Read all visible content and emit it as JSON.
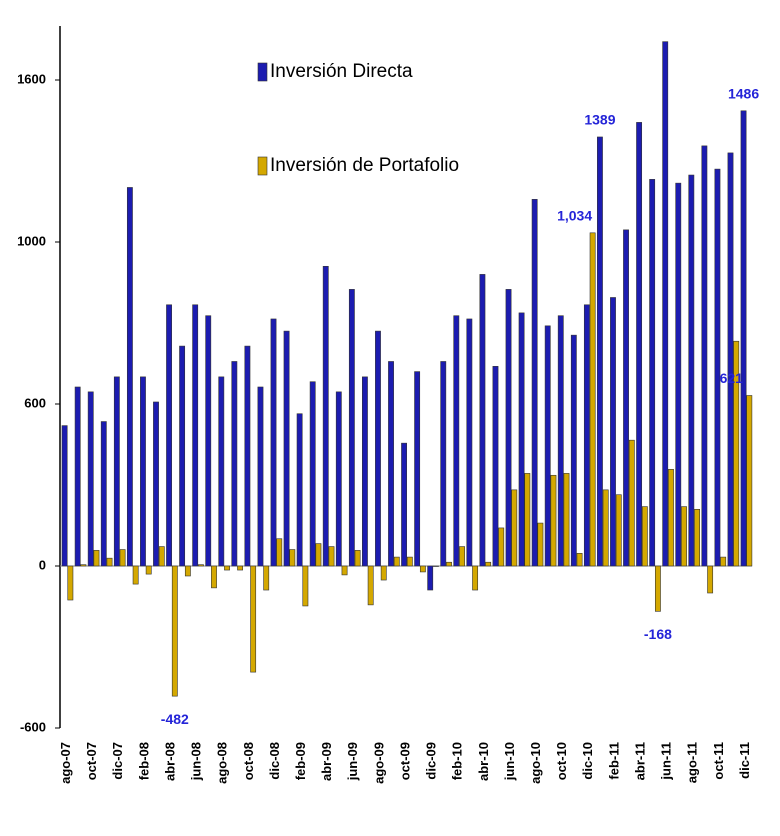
{
  "chart_data": {
    "type": "bar",
    "categories": [
      "ago-07",
      null,
      "oct-07",
      null,
      "dic-07",
      null,
      "feb-08",
      null,
      "abr-08",
      null,
      "jun-08",
      null,
      "ago-08",
      null,
      "oct-08",
      null,
      "dic-08",
      null,
      "feb-09",
      null,
      "abr-09",
      null,
      "jun-09",
      null,
      "ago-09",
      null,
      "oct-09",
      null,
      "dic-09",
      null,
      "feb-10",
      null,
      "abr-10",
      null,
      "jun-10",
      null,
      "ago-10",
      null,
      "oct-10",
      null,
      "dic-10",
      null,
      "feb-11",
      null,
      "abr-11",
      null,
      "jun-11",
      null,
      "ago-11",
      null,
      "oct-11",
      null,
      "dic-11"
    ],
    "series": [
      {
        "name": "Inversión Directa",
        "color": "#1c1cb0",
        "values": [
          520,
          642,
          630,
          535,
          667,
          1202,
          667,
          605,
          845,
          743,
          845,
          818,
          667,
          705,
          743,
          642,
          810,
          780,
          564,
          655,
          940,
          630,
          883,
          667,
          780,
          705,
          455,
          680,
          -89,
          705,
          818,
          810,
          920,
          693,
          883,
          825,
          1158,
          793,
          818,
          770,
          845,
          1389,
          863,
          1045,
          1443,
          1232,
          1742,
          1218,
          1248,
          1356,
          1270,
          1330,
          1486
        ],
        "value_labels": [
          null,
          null,
          null,
          null,
          null,
          null,
          null,
          null,
          null,
          null,
          null,
          null,
          null,
          null,
          null,
          null,
          null,
          null,
          null,
          null,
          null,
          null,
          null,
          null,
          null,
          null,
          null,
          null,
          null,
          null,
          null,
          null,
          null,
          null,
          null,
          null,
          null,
          null,
          null,
          null,
          null,
          "1389",
          null,
          null,
          null,
          null,
          null,
          null,
          null,
          null,
          null,
          null,
          "1486"
        ]
      },
      {
        "name": "Inversión de Portafolio",
        "color": "#d4a800",
        "values": [
          -126,
          5,
          58,
          29,
          61,
          -67,
          -30,
          72,
          -482,
          -37,
          5,
          -81,
          -15,
          -15,
          -393,
          -89,
          101,
          61,
          -148,
          83,
          72,
          -33,
          58,
          -144,
          -52,
          33,
          33,
          -22,
          0,
          14,
          72,
          -89,
          14,
          141,
          282,
          343,
          159,
          336,
          343,
          47,
          1034,
          282,
          264,
          466,
          220,
          -168,
          358,
          220,
          210,
          -100,
          33,
          755,
          621
        ],
        "value_labels": [
          null,
          null,
          null,
          null,
          null,
          null,
          null,
          null,
          "-482",
          null,
          null,
          null,
          null,
          null,
          null,
          null,
          null,
          null,
          null,
          null,
          null,
          null,
          null,
          null,
          null,
          null,
          null,
          null,
          null,
          null,
          null,
          null,
          null,
          null,
          null,
          null,
          null,
          null,
          null,
          null,
          "1,034",
          null,
          null,
          null,
          null,
          "-168",
          null,
          null,
          null,
          null,
          null,
          null,
          "621"
        ]
      }
    ],
    "ylim": [
      -600,
      1800
    ],
    "yticks": [
      -600,
      0,
      600,
      1000,
      1600
    ],
    "grid": false,
    "legend": "top"
  }
}
